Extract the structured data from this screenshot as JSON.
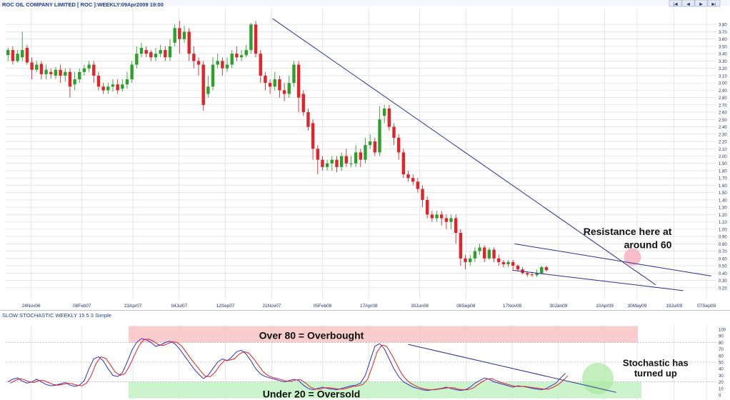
{
  "title": "ROC OIL COMPANY LIMITED [ ROC ]:WEEKLY:09Apr2009 19:00",
  "nav_buttons": [
    {
      "name": "first",
      "glyph": "|◀"
    },
    {
      "name": "previous",
      "glyph": "◀"
    },
    {
      "name": "next",
      "glyph": "▶"
    },
    {
      "name": "last",
      "glyph": "▶|"
    }
  ],
  "colors": {
    "up": "#2ca02c",
    "down": "#e0252a",
    "trendline": "#2b2f8f",
    "stoch_k": "#3030d0",
    "stoch_d": "#e02020",
    "overbought_zone": "#f8c8c8",
    "oversold_zone": "#c6f3c6",
    "highlight_red": "#f7a8b8",
    "highlight_green": "#a8e8a0",
    "axis_text": "#223366",
    "grid": "#d8d8d8",
    "background": "#ffffff"
  },
  "chart_data": [
    {
      "type": "candlestick",
      "title": "ROC OIL COMPANY LIMITED [ ROC ]:WEEKLY:09Apr2009 19:00",
      "y_ticks": [
        "3.80",
        "3.70",
        "3.60",
        "3.50",
        "3.40",
        "3.30",
        "3.20",
        "3.10",
        "3.00",
        "2.90",
        "2.80",
        "2.70",
        "2.60",
        "2.50",
        "2.40",
        "2.30",
        "2.20",
        "2.10",
        "2.00",
        "1.90",
        "1.80",
        "1.70",
        "1.60",
        "1.50",
        "1.40",
        "1.30",
        "1.20",
        "1.10",
        "1.00",
        "0.90",
        "0.80",
        "0.70",
        "0.60",
        "0.50",
        "0.40",
        "0.30",
        "0.20"
      ],
      "ylim": [
        0.1,
        3.9
      ],
      "x_ticks": [
        {
          "label": "24Nov06",
          "week": 5
        },
        {
          "label": "08Feb07",
          "week": 16
        },
        {
          "label": "23Apr07",
          "week": 27
        },
        {
          "label": "04Jul07",
          "week": 37
        },
        {
          "label": "12Sep07",
          "week": 47
        },
        {
          "label": "21Nov07",
          "week": 57
        },
        {
          "label": "05Feb08",
          "week": 68
        },
        {
          "label": "17Apr08",
          "week": 78
        },
        {
          "label": "30Jun08",
          "week": 89
        },
        {
          "label": "08Sep08",
          "week": 99
        },
        {
          "label": "17Nov08",
          "week": 109
        },
        {
          "label": "30Jan09",
          "week": 119
        },
        {
          "label": "10Apr09",
          "week": 129
        },
        {
          "label": "30May09",
          "week": 136
        },
        {
          "label": "19Jul09",
          "week": 144
        },
        {
          "label": "07Sep09",
          "week": 151
        }
      ],
      "x_range_weeks": [
        -0.5,
        153
      ],
      "candles": [
        [
          3.38,
          3.45,
          3.48,
          3.3
        ],
        [
          3.45,
          3.3,
          3.5,
          3.25
        ],
        [
          3.3,
          3.4,
          3.45,
          3.28
        ],
        [
          3.35,
          3.45,
          3.7,
          3.3
        ],
        [
          3.48,
          3.28,
          3.52,
          3.25
        ],
        [
          3.28,
          3.18,
          3.35,
          3.05
        ],
        [
          3.18,
          3.25,
          3.3,
          3.15
        ],
        [
          3.26,
          3.12,
          3.3,
          3.05
        ],
        [
          3.12,
          3.18,
          3.25,
          3.05
        ],
        [
          3.15,
          3.12,
          3.2,
          3.06
        ],
        [
          3.1,
          3.18,
          3.22,
          3.05
        ],
        [
          3.18,
          3.1,
          3.25,
          3.0
        ],
        [
          3.1,
          3.15,
          3.2,
          3.02
        ],
        [
          3.15,
          2.95,
          3.2,
          2.8
        ],
        [
          2.98,
          3.05,
          3.15,
          2.9
        ],
        [
          3.05,
          3.15,
          3.2,
          3.0
        ],
        [
          3.15,
          3.2,
          3.25,
          3.1
        ],
        [
          3.2,
          3.25,
          3.3,
          3.15
        ],
        [
          3.25,
          3.1,
          3.3,
          3.0
        ],
        [
          3.1,
          2.95,
          3.15,
          2.9
        ],
        [
          2.95,
          2.9,
          3.0,
          2.85
        ],
        [
          2.9,
          2.95,
          3.0,
          2.85
        ],
        [
          2.95,
          2.98,
          3.05,
          2.88
        ],
        [
          2.98,
          2.9,
          3.05,
          2.85
        ],
        [
          2.92,
          2.98,
          3.05,
          2.88
        ],
        [
          2.98,
          3.05,
          3.15,
          2.92
        ],
        [
          3.05,
          3.25,
          3.3,
          3.0
        ],
        [
          3.25,
          3.4,
          3.5,
          3.2
        ],
        [
          3.4,
          3.48,
          3.55,
          3.35
        ],
        [
          3.45,
          3.4,
          3.5,
          3.35
        ],
        [
          3.42,
          3.35,
          3.45,
          3.3
        ],
        [
          3.35,
          3.4,
          3.48,
          3.3
        ],
        [
          3.4,
          3.45,
          3.52,
          3.35
        ],
        [
          3.45,
          3.35,
          3.5,
          3.3
        ],
        [
          3.35,
          3.5,
          3.6,
          3.3
        ],
        [
          3.55,
          3.75,
          3.8,
          3.5
        ],
        [
          3.75,
          3.6,
          3.85,
          3.4
        ],
        [
          3.6,
          3.7,
          3.78,
          3.55
        ],
        [
          3.7,
          3.4,
          3.75,
          3.3
        ],
        [
          3.4,
          3.3,
          3.5,
          3.2
        ],
        [
          3.3,
          3.25,
          3.35,
          3.1
        ],
        [
          3.25,
          2.7,
          3.3,
          2.62
        ],
        [
          2.85,
          2.95,
          3.1,
          2.8
        ],
        [
          2.95,
          3.25,
          3.35,
          2.9
        ],
        [
          3.25,
          3.3,
          3.4,
          3.2
        ],
        [
          3.3,
          3.2,
          3.35,
          3.1
        ],
        [
          3.2,
          3.25,
          3.35,
          3.15
        ],
        [
          3.25,
          3.4,
          3.45,
          3.2
        ],
        [
          3.4,
          3.35,
          3.5,
          3.3
        ],
        [
          3.35,
          3.38,
          3.45,
          3.3
        ],
        [
          3.38,
          3.45,
          3.52,
          3.35
        ],
        [
          3.45,
          3.8,
          3.82,
          3.4
        ],
        [
          3.8,
          3.4,
          3.85,
          3.35
        ],
        [
          3.4,
          3.1,
          3.45,
          3.0
        ],
        [
          3.1,
          3.0,
          3.15,
          2.9
        ],
        [
          3.0,
          2.95,
          3.05,
          2.85
        ],
        [
          2.95,
          3.05,
          3.15,
          2.9
        ],
        [
          3.05,
          2.9,
          3.1,
          2.8
        ],
        [
          2.9,
          2.85,
          3.0,
          2.75
        ],
        [
          2.85,
          3.0,
          3.1,
          2.8
        ],
        [
          3.0,
          3.25,
          3.3,
          2.95
        ],
        [
          3.25,
          2.8,
          3.3,
          2.6
        ],
        [
          2.85,
          2.6,
          2.9,
          2.55
        ],
        [
          2.6,
          2.4,
          2.65,
          2.35
        ],
        [
          2.45,
          2.1,
          2.5,
          1.95
        ],
        [
          2.1,
          1.95,
          2.15,
          1.75
        ],
        [
          1.95,
          1.85,
          2.0,
          1.8
        ],
        [
          1.85,
          1.9,
          1.95,
          1.8
        ],
        [
          1.9,
          1.95,
          2.0,
          1.8
        ],
        [
          1.95,
          1.85,
          2.0,
          1.78
        ],
        [
          1.85,
          2.0,
          2.05,
          1.8
        ],
        [
          2.0,
          1.9,
          2.1,
          1.85
        ],
        [
          1.9,
          1.9,
          2.0,
          1.85
        ],
        [
          1.9,
          2.05,
          2.15,
          1.85
        ],
        [
          2.05,
          1.95,
          2.1,
          1.85
        ],
        [
          1.95,
          2.15,
          2.25,
          1.9
        ],
        [
          2.15,
          2.2,
          2.3,
          2.1
        ],
        [
          2.2,
          2.05,
          2.25,
          2.0
        ],
        [
          2.05,
          2.5,
          2.68,
          2.0
        ],
        [
          2.55,
          2.65,
          2.7,
          2.45
        ],
        [
          2.65,
          2.4,
          2.7,
          2.35
        ],
        [
          2.4,
          2.25,
          2.45,
          2.15
        ],
        [
          2.25,
          2.05,
          2.3,
          1.95
        ],
        [
          2.05,
          1.75,
          2.1,
          1.7
        ],
        [
          1.75,
          1.7,
          1.8,
          1.65
        ],
        [
          1.7,
          1.65,
          1.75,
          1.6
        ],
        [
          1.65,
          1.55,
          1.7,
          1.5
        ],
        [
          1.55,
          1.4,
          1.6,
          1.3
        ],
        [
          1.4,
          1.2,
          1.45,
          1.15
        ],
        [
          1.2,
          1.15,
          1.25,
          1.1
        ],
        [
          1.15,
          1.2,
          1.25,
          1.1
        ],
        [
          1.2,
          1.15,
          1.25,
          1.05
        ],
        [
          1.15,
          1.1,
          1.2,
          1.0
        ],
        [
          1.1,
          1.15,
          1.2,
          1.0
        ],
        [
          1.15,
          0.95,
          1.2,
          0.8
        ],
        [
          0.95,
          0.6,
          1.0,
          0.5
        ],
        [
          0.6,
          0.55,
          0.65,
          0.45
        ],
        [
          0.55,
          0.6,
          0.65,
          0.5
        ],
        [
          0.6,
          0.7,
          0.75,
          0.55
        ],
        [
          0.7,
          0.75,
          0.8,
          0.65
        ],
        [
          0.75,
          0.6,
          0.78,
          0.55
        ],
        [
          0.6,
          0.72,
          0.75,
          0.58
        ],
        [
          0.72,
          0.6,
          0.75,
          0.55
        ],
        [
          0.6,
          0.55,
          0.65,
          0.5
        ],
        [
          0.55,
          0.52,
          0.58,
          0.48
        ],
        [
          0.52,
          0.55,
          0.58,
          0.48
        ],
        [
          0.55,
          0.5,
          0.58,
          0.45
        ],
        [
          0.5,
          0.45,
          0.52,
          0.42
        ],
        [
          0.45,
          0.4,
          0.48,
          0.38
        ],
        [
          0.4,
          0.38,
          0.42,
          0.35
        ],
        [
          0.38,
          0.37,
          0.42,
          0.35
        ],
        [
          0.37,
          0.4,
          0.45,
          0.35
        ],
        [
          0.4,
          0.48,
          0.5,
          0.38
        ],
        [
          0.48,
          0.44,
          0.5,
          0.42
        ]
      ],
      "first_candle_week": 0,
      "candle_step_weeks": 1.03,
      "trendlines": [
        {
          "name": "long-term-downtrend",
          "from": [
            57.2,
            3.88
          ],
          "to": [
            140,
            0.24
          ]
        },
        {
          "name": "channel-upper",
          "from": [
            109.5,
            0.8
          ],
          "to": [
            152,
            0.36
          ]
        },
        {
          "name": "channel-lower",
          "from": [
            109,
            0.44
          ],
          "to": [
            146,
            0.16
          ]
        }
      ],
      "annotations": [
        {
          "text": "Resistance here at",
          "week": 143.5,
          "value": 0.92,
          "anchor": "end"
        },
        {
          "text": "around 60",
          "week": 143.5,
          "value": 0.74,
          "anchor": "end"
        }
      ],
      "highlight": {
        "shape": "circle",
        "week": 135,
        "value": 0.62
      }
    },
    {
      "type": "line",
      "title": "SLOW STOCHASTIC WEEKLY 15 5 3 Simple",
      "y_ticks": [
        "100",
        "90",
        "80",
        "70",
        "60",
        "50",
        "40",
        "30",
        "20",
        "10",
        "0"
      ],
      "ylim": [
        0,
        100
      ],
      "reference_lines": [
        80,
        50,
        20
      ],
      "zones": [
        {
          "name": "overbought",
          "from": 80,
          "to": 105,
          "label": "Over 80 = Overbought"
        },
        {
          "name": "oversold",
          "from": -5,
          "to": 20,
          "label": "Under 20 = Oversold"
        }
      ],
      "x_range_weeks": [
        -0.5,
        153
      ],
      "series": [
        {
          "id": "k",
          "values": [
            20,
            24,
            26,
            21,
            18,
            20,
            24,
            20,
            16,
            14,
            15,
            17,
            19,
            15,
            13,
            15,
            22,
            40,
            55,
            58,
            52,
            40,
            30,
            28,
            34,
            50,
            68,
            80,
            86,
            84,
            80,
            74,
            76,
            80,
            82,
            78,
            70,
            60,
            50,
            40,
            32,
            25,
            30,
            40,
            50,
            55,
            52,
            58,
            66,
            68,
            62,
            52,
            40,
            32,
            28,
            26,
            24,
            22,
            20,
            22,
            24,
            22,
            15,
            10,
            8,
            10,
            12,
            10,
            9,
            8,
            10,
            12,
            14,
            15,
            18,
            30,
            52,
            74,
            78,
            70,
            55,
            40,
            28,
            20,
            16,
            12,
            10,
            8,
            7,
            8,
            9,
            10,
            12,
            10,
            8,
            7,
            8,
            12,
            18,
            22,
            26,
            24,
            20,
            18,
            16,
            14,
            12,
            14,
            13,
            12,
            10,
            9,
            8,
            10,
            14,
            18,
            26,
            33
          ],
          "first_week": 0,
          "step_weeks": 1.03
        },
        {
          "id": "d",
          "values": [
            18,
            22,
            25,
            23,
            20,
            19,
            22,
            22,
            19,
            16,
            15,
            16,
            18,
            17,
            15,
            14,
            18,
            30,
            48,
            58,
            56,
            46,
            35,
            30,
            32,
            44,
            60,
            75,
            84,
            85,
            82,
            77,
            75,
            78,
            81,
            80,
            74,
            64,
            54,
            45,
            36,
            28,
            28,
            35,
            45,
            53,
            53,
            55,
            62,
            66,
            64,
            56,
            46,
            36,
            30,
            27,
            25,
            23,
            21,
            21,
            23,
            23,
            18,
            12,
            9,
            9,
            11,
            11,
            10,
            9,
            9,
            11,
            13,
            14,
            16,
            24,
            44,
            66,
            76,
            74,
            62,
            48,
            34,
            24,
            18,
            14,
            11,
            9,
            8,
            8,
            9,
            10,
            11,
            11,
            9,
            8,
            8,
            10,
            15,
            20,
            24,
            25,
            22,
            19,
            17,
            15,
            13,
            13,
            13,
            12,
            11,
            10,
            9,
            9,
            12,
            16,
            22,
            29
          ],
          "first_week": 0.5,
          "step_weeks": 1.03
        }
      ],
      "trendlines": [
        {
          "name": "stochastic-downtrend",
          "from": [
            86.5,
            77
          ],
          "to": [
            131.5,
            4
          ]
        }
      ],
      "annotations": [
        {
          "text": "Stochastic has",
          "week": 140,
          "value": 44,
          "anchor": "middle"
        },
        {
          "text": "turned up",
          "week": 140,
          "value": 28,
          "anchor": "middle"
        }
      ],
      "highlight": {
        "shape": "circle",
        "week": 127.5,
        "value": 25
      }
    }
  ]
}
